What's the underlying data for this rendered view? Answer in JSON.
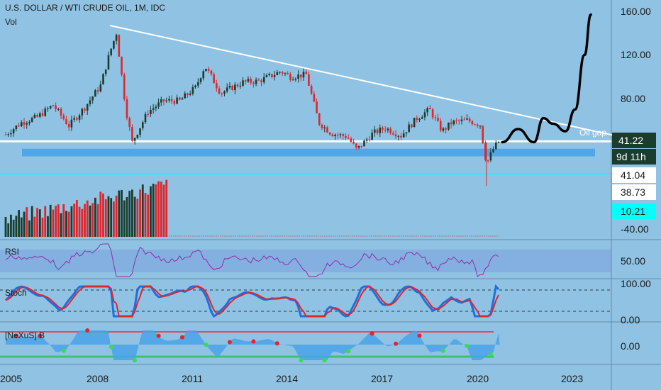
{
  "header": {
    "symbol": "U.S. DOLLAR / WTI CRUDE OIL, 1M, IDC",
    "vol": "Vol"
  },
  "colors": {
    "background": "#8fc2e3",
    "up": "#1b3d2f",
    "down": "#e0262a",
    "trendline": "#ffffff",
    "support_band": "#4aa3e8",
    "cyan_line": "#00ffff",
    "rsi_line": "#8e2fa7",
    "stoch_k": "#1f6fe0",
    "stoch_d": "#e0262a",
    "nexus_fill": "#4aa3e8",
    "nexus_line": "#e05050"
  },
  "annotations": {
    "oil_gap": "Oil gap"
  },
  "price_axis": {
    "ticks": [
      "160.00",
      "120.00",
      "80.00"
    ],
    "last_price": "41.22",
    "countdown": "9d 11h"
  },
  "volume_axis": {
    "ticks": [
      "41.04",
      "38.73",
      "-40.00"
    ],
    "cyan_badge": "10.21"
  },
  "rsi_panel": {
    "label": "RSI",
    "ticks": [
      "50.00"
    ]
  },
  "stoch_panel": {
    "label": "Stoch",
    "ticks": [
      "100.00",
      "0.00"
    ]
  },
  "nexus_panel": {
    "label": "[NeXuS] B",
    "ticks": [
      "0.00"
    ]
  },
  "time_axis": {
    "labels": [
      "2005",
      "2008",
      "2011",
      "2014",
      "2017",
      "2020",
      "2023"
    ]
  },
  "chart_data": {
    "type": "candlestick",
    "title": "U.S. DOLLAR / WTI CRUDE OIL, 1M, IDC",
    "x_range": [
      2005,
      2025
    ],
    "y_range": [
      18,
      167
    ],
    "series": [
      {
        "name": "U.S. DOLLAR / WTI CRUDE OIL",
        "dates": [
          2005.0,
          2005.5,
          2006.0,
          2006.5,
          2007.0,
          2007.5,
          2008.0,
          2008.3,
          2008.5,
          2008.8,
          2009.0,
          2009.5,
          2010.0,
          2010.5,
          2011.0,
          2011.3,
          2011.8,
          2012.5,
          2013.0,
          2013.7,
          2014.0,
          2014.5,
          2014.9,
          2015.3,
          2015.8,
          2016.1,
          2016.6,
          2017.0,
          2017.5,
          2018.0,
          2018.4,
          2018.8,
          2019.1,
          2019.6,
          2020.0,
          2020.2,
          2020.4,
          2020.6
        ],
        "close": [
          47,
          58,
          63,
          74,
          55,
          72,
          92,
          123,
          140,
          70,
          40,
          68,
          78,
          78,
          90,
          110,
          85,
          95,
          96,
          105,
          100,
          102,
          58,
          48,
          45,
          33,
          48,
          53,
          46,
          62,
          70,
          50,
          58,
          60,
          56,
          20,
          33,
          41.22
        ]
      }
    ],
    "trendline": {
      "from": [
        2008.3,
        147
      ],
      "to": [
        2024.9,
        42
      ]
    },
    "horizontal_levels": [
      41.22,
      40.3
    ],
    "support_band": [
      27,
      34
    ],
    "projection": {
      "dates": [
        2020.7,
        2021.2,
        2021.7,
        2022.0,
        2022.3,
        2022.7,
        2023.0,
        2023.3,
        2023.5
      ],
      "values": [
        40,
        52,
        40,
        62,
        57,
        50,
        70,
        120,
        157
      ]
    }
  }
}
